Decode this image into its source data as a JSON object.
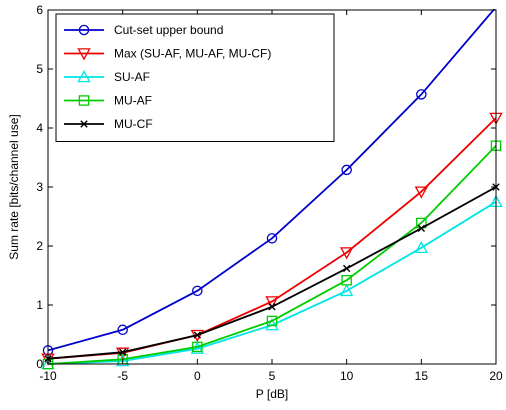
{
  "chart_data": {
    "type": "line",
    "xlabel": "P [dB]",
    "ylabel": "Sum rate [bits/channel use]",
    "xlim": [
      -10,
      20
    ],
    "ylim": [
      0,
      6
    ],
    "xticks": [
      -10,
      -5,
      0,
      5,
      10,
      15,
      20
    ],
    "yticks": [
      0,
      1,
      2,
      3,
      4,
      5,
      6
    ],
    "grid": false,
    "legend_position": "top-left",
    "x": [
      -10,
      -5,
      0,
      5,
      10,
      15,
      20
    ],
    "series": [
      {
        "name": "Cut-set upper bound",
        "color": "#0000cc",
        "marker": "circle",
        "values": [
          0.23,
          0.58,
          1.24,
          2.13,
          3.29,
          4.57,
          6.05
        ]
      },
      {
        "name": "Max (SU-AF, MU-AF, MU-CF)",
        "color": "#ee0000",
        "marker": "triangle-down",
        "values": [
          0.09,
          0.19,
          0.49,
          1.06,
          1.89,
          2.92,
          4.17
        ]
      },
      {
        "name": "SU-AF",
        "color": "#00e5e5",
        "marker": "triangle-up",
        "values": [
          0.0,
          0.05,
          0.26,
          0.66,
          1.24,
          1.97,
          2.75
        ]
      },
      {
        "name": "MU-AF",
        "color": "#00cc00",
        "marker": "square",
        "values": [
          0.0,
          0.08,
          0.29,
          0.73,
          1.42,
          2.39,
          3.7
        ]
      },
      {
        "name": "MU-CF",
        "color": "#000000",
        "marker": "x",
        "values": [
          0.09,
          0.2,
          0.49,
          0.97,
          1.62,
          2.3,
          3.0
        ]
      }
    ]
  }
}
